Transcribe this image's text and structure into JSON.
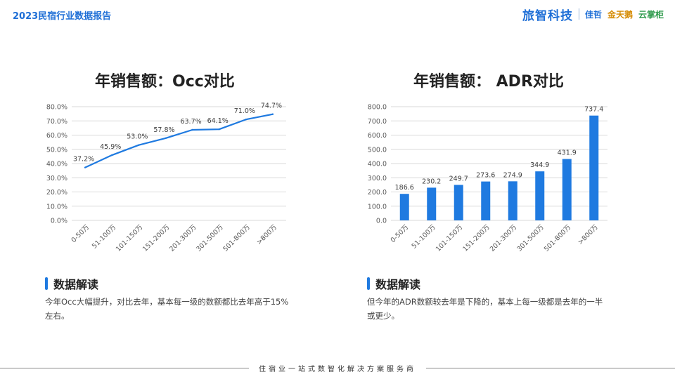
{
  "header": {
    "report_title": "2023民宿行业数据报告",
    "logo_main": "旅智科技",
    "logo_jiazhe": "佳哲",
    "logo_jintianwo": "金天鹅",
    "logo_yunzhanggui": "云掌柜"
  },
  "chart_data": [
    {
      "type": "line",
      "title": "年销售额：Occ对比",
      "categories": [
        "0-50万",
        "51-100万",
        "101-150万",
        "151-200万",
        "201-300万",
        "301-500万",
        "501-800万",
        ">800万"
      ],
      "series": [
        {
          "values": [
            37.2,
            45.9,
            53.0,
            57.8,
            63.7,
            64.1,
            71.0,
            74.7
          ]
        }
      ],
      "data_labels": [
        "37.2%",
        "45.9%",
        "53.0%",
        "57.8%",
        "63.7%",
        "64.1%",
        "71.0%",
        "74.7%"
      ],
      "y_ticks": [
        "0.0%",
        "10.0%",
        "20.0%",
        "30.0%",
        "40.0%",
        "50.0%",
        "60.0%",
        "70.0%",
        "80.0%"
      ],
      "ylim": [
        0,
        80
      ],
      "xlabel": "",
      "ylabel": "",
      "grid": true,
      "color": "#1f7ae0"
    },
    {
      "type": "bar",
      "title": "年销售额： ADR对比",
      "categories": [
        "0-50万",
        "51-100万",
        "101-150万",
        "151-200万",
        "201-300万",
        "301-500万",
        "501-800万",
        ">800万"
      ],
      "series": [
        {
          "values": [
            186.6,
            230.2,
            249.7,
            273.6,
            274.9,
            344.9,
            431.9,
            737.4
          ]
        }
      ],
      "data_labels": [
        "186.6",
        "230.2",
        "249.7",
        "273.6",
        "274.9",
        "344.9",
        "431.9",
        "737.4"
      ],
      "y_ticks": [
        "0.0",
        "100.0",
        "200.0",
        "300.0",
        "400.0",
        "500.0",
        "600.0",
        "700.0",
        "800.0"
      ],
      "ylim": [
        0,
        800
      ],
      "xlabel": "",
      "ylabel": "",
      "grid": true,
      "color": "#1f7ae0"
    }
  ],
  "sections": {
    "occ": {
      "heading": "数据解读",
      "text_line1": "今年Occ大幅提升，对比去年，基本每一级的数额都比去年高于15%",
      "text_line2": "左右。"
    },
    "adr": {
      "heading": "数据解读",
      "text_line1": "但今年的ADR数额较去年是下降的，基本上每一级都是去年的一半",
      "text_line2": "或更少。"
    }
  },
  "footer": {
    "text": "住宿业一站式数智化解决方案服务商"
  }
}
